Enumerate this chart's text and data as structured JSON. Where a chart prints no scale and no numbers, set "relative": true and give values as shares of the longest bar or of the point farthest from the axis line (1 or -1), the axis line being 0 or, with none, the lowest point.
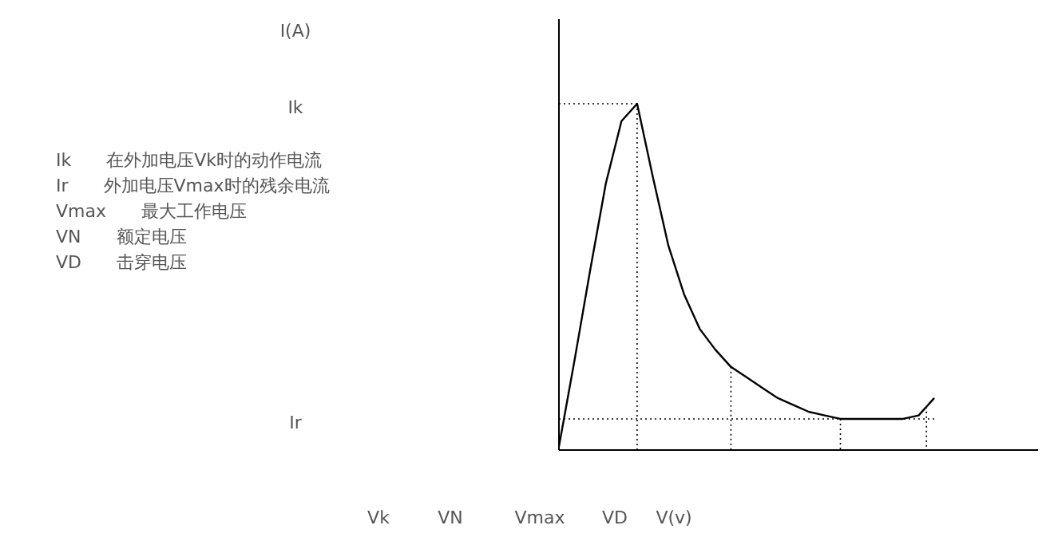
{
  "chart_data": {
    "type": "line",
    "relative": true,
    "xlabel": "V(v)",
    "categories": [
      null,
      null,
      null,
      null,
      null,
      null,
      null,
      null,
      null,
      null,
      null,
      null,
      null,
      null,
      null,
      null,
      null,
      null,
      null,
      null,
      null,
      null,
      null,
      null,
      null
    ],
    "series": [
      {
        "color": "#000000",
        "values": [
          0.01,
          0.26,
          0.52,
          0.77,
          0.95,
          1,
          0.79,
          0.59,
          0.45,
          0.35,
          0.29,
          0.24,
          0.21,
          0.18,
          0.15,
          0.13,
          0.11,
          0.1,
          0.09,
          0.09,
          0.09,
          0.09,
          0.09,
          0.1,
          0.15
        ]
      }
    ],
    "ref_lines": [
      {
        "axis": "y",
        "value": 1,
        "line_style": "dotted"
      },
      {
        "axis": "y",
        "value": 0.09,
        "line_style": "dotted"
      }
    ],
    "annotations": [
      "Ik　　在外加电压Vk时的动作电流",
      "Ir　　外加电压Vmax时的残余电流",
      "Vmax　　最大工作电压",
      "VN　　额定电压",
      "VD　　击穿电压",
      "Vk",
      "VN",
      "Vmax",
      "VD",
      "I(A)",
      "Ik",
      "Ir"
    ],
    "marker": "none",
    "line_style": "solid"
  }
}
